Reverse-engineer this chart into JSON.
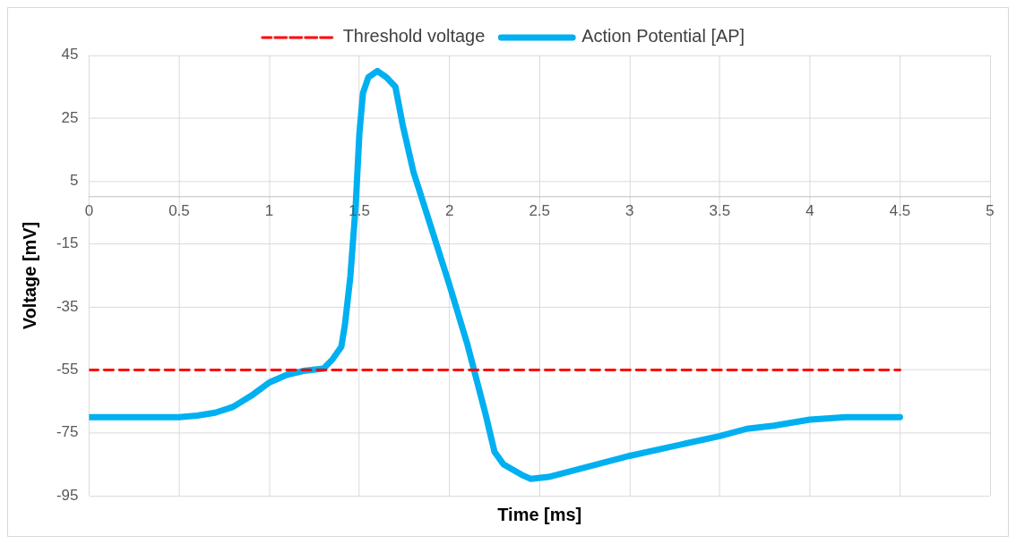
{
  "chart_data": {
    "type": "line",
    "xlabel": "Time [ms]",
    "ylabel": "Voltage [mV]",
    "xlim": [
      0,
      5
    ],
    "xticks": [
      0,
      0.5,
      1,
      1.5,
      2,
      2.5,
      3,
      3.5,
      4,
      4.5,
      5
    ],
    "ylim": [
      -95,
      45
    ],
    "yticks": [
      -95,
      -75,
      -55,
      -35,
      -15,
      5,
      25,
      45
    ],
    "grid": true,
    "legend": "top",
    "marker": "none",
    "series": [
      {
        "name": "Threshold voltage",
        "color": "#ff0000",
        "line_style": "dashed",
        "x": [
          0,
          4.5
        ],
        "values": [
          -55,
          -55
        ]
      },
      {
        "name": "Action Potential [AP]",
        "color": "#00b0f0",
        "line_style": "solid",
        "x": [
          0,
          0.5,
          0.6,
          0.7,
          0.8,
          0.9,
          1.0,
          1.1,
          1.2,
          1.3,
          1.35,
          1.4,
          1.42,
          1.45,
          1.48,
          1.5,
          1.52,
          1.55,
          1.6,
          1.65,
          1.7,
          1.74,
          1.8,
          2.0,
          2.1,
          2.2,
          2.25,
          2.3,
          2.4,
          2.45,
          2.55,
          3.0,
          3.5,
          3.65,
          3.8,
          4.0,
          4.2,
          4.5
        ],
        "values": [
          -70,
          -70,
          -69.5,
          -68.6,
          -66.7,
          -63.2,
          -59,
          -56.5,
          -55.2,
          -54.6,
          -51.7,
          -47.6,
          -40.6,
          -25.3,
          -2.4,
          20,
          33,
          38,
          40,
          38,
          35,
          23,
          8,
          -28,
          -47,
          -69,
          -81,
          -85,
          -88.3,
          -89.6,
          -89,
          -82.3,
          -76,
          -73.7,
          -72.7,
          -70.8,
          -70,
          -70
        ]
      }
    ]
  }
}
